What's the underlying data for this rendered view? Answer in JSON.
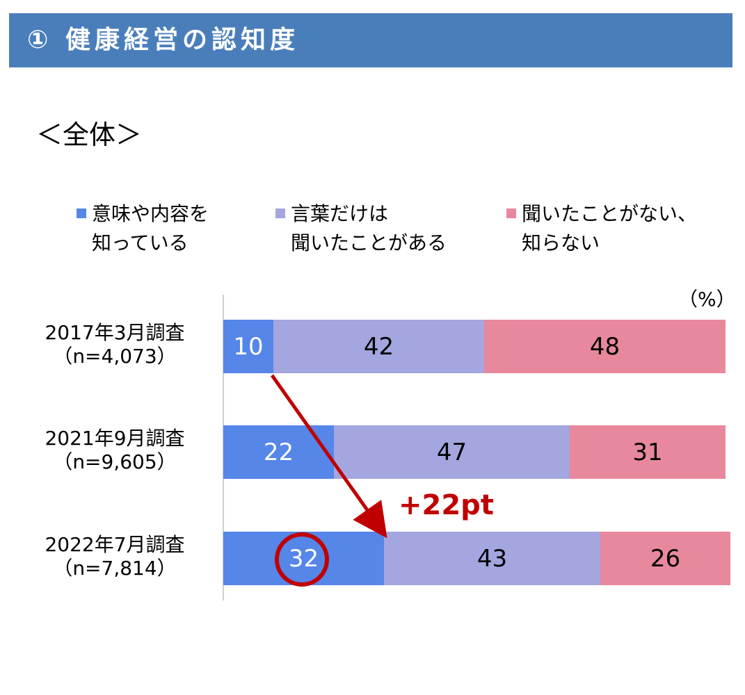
{
  "header": {
    "title": "① 健康経営の認知度"
  },
  "subtitle": "＜全体＞",
  "unit_label": "（%）",
  "annotation": {
    "delta_label": "+22pt"
  },
  "colors": {
    "header_bg": "#4a7ebb",
    "series": [
      "#5586e8",
      "#a4a6df",
      "#e8889d"
    ],
    "annotation": "#c00000"
  },
  "chart_data": {
    "type": "bar",
    "orientation": "horizontal",
    "stacked": true,
    "title": "",
    "xlabel": "",
    "ylabel": "",
    "xlim": [
      0,
      100
    ],
    "legend_position": "top",
    "grid": false,
    "categories": [
      {
        "line1": "2017年3月調査",
        "line2": "（n=4,073）"
      },
      {
        "line1": "2021年9月調査",
        "line2": "（n=9,605）"
      },
      {
        "line1": "2022年7月調査",
        "line2": "（n=7,814）"
      }
    ],
    "series": [
      {
        "name_line1": "意味や内容を",
        "name_line2": "知っている",
        "values": [
          10,
          22,
          32
        ]
      },
      {
        "name_line1": "言葉だけは",
        "name_line2": "聞いたことがある",
        "values": [
          42,
          47,
          43
        ]
      },
      {
        "name_line1": "聞いたことがない、",
        "name_line2": "知らない",
        "values": [
          48,
          31,
          26
        ]
      }
    ]
  }
}
